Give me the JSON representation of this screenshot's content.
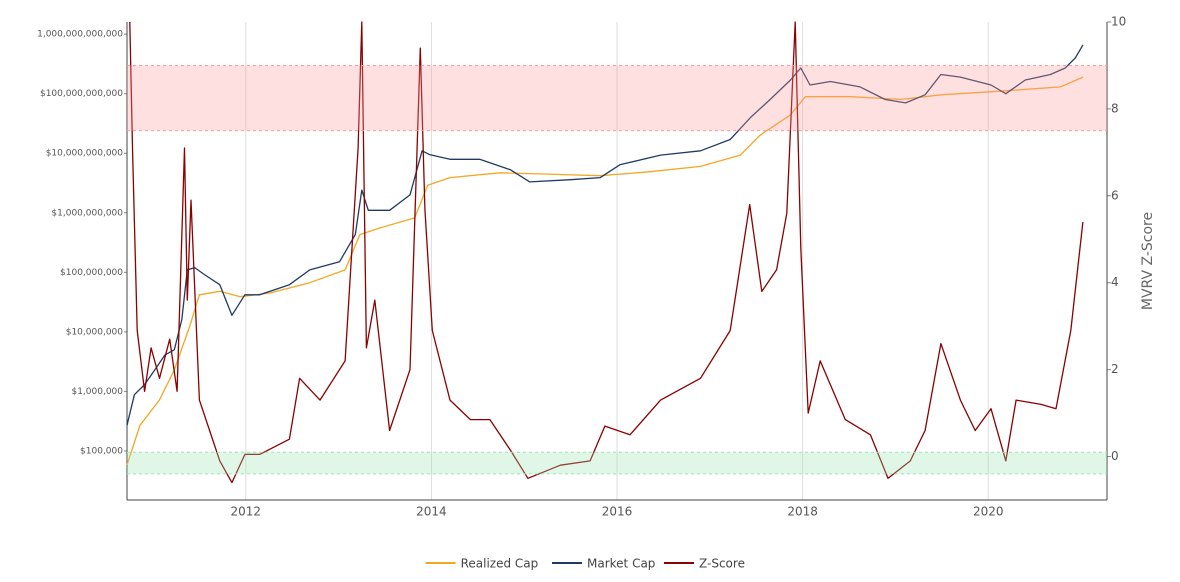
{
  "chart_data": {
    "type": "line",
    "y2_title": "MVRV Z-Score",
    "log_y": true,
    "grid": true,
    "legend": "bottom",
    "xlim": [
      2010.72,
      2021.28
    ],
    "xticks": [
      2012,
      2014,
      2016,
      2018,
      2020
    ],
    "ylim": [
      15000,
      1600000000000
    ],
    "yticks": [
      {
        "value": 100000,
        "label": "$100,000"
      },
      {
        "value": 1000000,
        "label": "$1,000,000"
      },
      {
        "value": 10000000,
        "label": "$10,000,000"
      },
      {
        "value": 100000000,
        "label": "$100,000,000"
      },
      {
        "value": 1000000000,
        "label": "$1,000,000,000"
      },
      {
        "value": 10000000000,
        "label": "$10,000,000,000"
      },
      {
        "value": 100000000000,
        "label": "$100,000,000,000"
      },
      {
        "value": 1000000000000,
        "label": "1,000,000,000,000"
      }
    ],
    "y2lim": [
      -1,
      10
    ],
    "y2ticks": [
      0,
      2,
      4,
      6,
      8,
      10
    ],
    "zones": [
      {
        "from": 7.5,
        "to": 9,
        "color": "#ff9999"
      },
      {
        "from": -0.4,
        "to": 0.1,
        "color": "#99e6b3"
      }
    ],
    "series": [
      {
        "name": "Realized Cap",
        "color": "#f5a623",
        "x": [
          2010.72,
          2010.86,
          2011.07,
          2011.23,
          2011.4,
          2011.5,
          2011.72,
          2011.94,
          2012.26,
          2012.69,
          2013.07,
          2013.23,
          2013.45,
          2013.82,
          2013.96,
          2014.2,
          2014.74,
          2015.39,
          2015.82,
          2016.36,
          2016.9,
          2017.33,
          2017.54,
          2017.87,
          2018.03,
          2018.52,
          2019.06,
          2019.49,
          2020.13,
          2020.78,
          2021.02
        ],
        "values": [
          58000,
          270000,
          720000,
          2300000,
          13000000,
          42000000,
          48000000,
          39000000,
          45000000,
          67000000,
          110000000,
          430000000,
          560000000,
          820000000,
          2900000000,
          3900000000,
          4700000000,
          4400000000,
          4200000000,
          4900000000,
          6000000000,
          9300000000,
          20000000000,
          44000000000,
          89000000000,
          89000000000,
          80000000000,
          96000000000,
          110000000000,
          130000000000,
          190000000000
        ]
      },
      {
        "name": "Market Cap",
        "color": "#1f3b63",
        "x": [
          2010.72,
          2010.8,
          2010.91,
          2011.02,
          2011.13,
          2011.23,
          2011.31,
          2011.37,
          2011.45,
          2011.56,
          2011.72,
          2011.85,
          2011.99,
          2012.15,
          2012.47,
          2012.69,
          2013.01,
          2013.18,
          2013.25,
          2013.32,
          2013.55,
          2013.77,
          2013.9,
          2013.98,
          2014.2,
          2014.52,
          2014.85,
          2015.06,
          2015.5,
          2015.82,
          2016.03,
          2016.47,
          2016.9,
          2017.22,
          2017.44,
          2017.65,
          2017.87,
          2017.98,
          2018.08,
          2018.3,
          2018.62,
          2018.89,
          2019.11,
          2019.32,
          2019.49,
          2019.7,
          2020.03,
          2020.19,
          2020.4,
          2020.67,
          2020.83,
          2020.94,
          2021.02
        ],
        "values": [
          270000,
          880000,
          1300000,
          2300000,
          4100000,
          5000000,
          16000000,
          110000000,
          120000000,
          90000000,
          62000000,
          19000000,
          42000000,
          42000000,
          62000000,
          110000000,
          150000000,
          430000000,
          2400000000,
          1100000000,
          1100000000,
          2000000000,
          11000000000,
          9500000000,
          7900000000,
          7900000000,
          5300000000,
          3300000000,
          3600000000,
          3900000000,
          6400000000,
          9300000000,
          11000000000,
          17000000000,
          40000000000,
          80000000000,
          170000000000,
          270000000000,
          140000000000,
          160000000000,
          130000000000,
          80000000000,
          70000000000,
          96000000000,
          210000000000,
          190000000000,
          140000000000,
          100000000000,
          170000000000,
          210000000000,
          270000000000,
          400000000000,
          660000000000
        ]
      },
      {
        "name": "Z-Score",
        "color": "#8b0000",
        "axis": "y2",
        "x": [
          2010.75,
          2010.78,
          2010.83,
          2010.91,
          2010.98,
          2011.07,
          2011.18,
          2011.26,
          2011.34,
          2011.37,
          2011.41,
          2011.5,
          2011.61,
          2011.72,
          2011.85,
          2011.99,
          2012.15,
          2012.47,
          2012.58,
          2012.8,
          2013.07,
          2013.21,
          2013.25,
          2013.3,
          2013.39,
          2013.55,
          2013.77,
          2013.88,
          2013.93,
          2014.01,
          2014.2,
          2014.42,
          2014.63,
          2014.85,
          2015.04,
          2015.39,
          2015.71,
          2015.87,
          2016.14,
          2016.47,
          2016.9,
          2017.22,
          2017.43,
          2017.56,
          2017.72,
          2017.83,
          2017.92,
          2017.98,
          2018.06,
          2018.19,
          2018.46,
          2018.73,
          2018.92,
          2019.16,
          2019.32,
          2019.49,
          2019.7,
          2019.86,
          2020.03,
          2020.19,
          2020.3,
          2020.57,
          2020.73,
          2020.89,
          2021.02
        ],
        "values": [
          10,
          7.0,
          2.9,
          1.5,
          2.5,
          1.8,
          2.7,
          1.5,
          7.1,
          3.6,
          5.9,
          1.3,
          0.6,
          -0.1,
          -0.6,
          0.05,
          0.05,
          0.4,
          1.8,
          1.3,
          2.2,
          7.1,
          10,
          2.5,
          3.6,
          0.6,
          2.0,
          9.4,
          5.7,
          2.9,
          1.3,
          0.85,
          0.85,
          0.15,
          -0.5,
          -0.2,
          -0.1,
          0.7,
          0.5,
          1.3,
          1.8,
          2.9,
          5.8,
          3.8,
          4.3,
          5.6,
          10,
          4.8,
          1.0,
          2.2,
          0.85,
          0.5,
          -0.5,
          -0.1,
          0.6,
          2.6,
          1.3,
          0.6,
          1.1,
          -0.1,
          1.3,
          1.2,
          1.1,
          2.9,
          5.4
        ]
      }
    ]
  }
}
